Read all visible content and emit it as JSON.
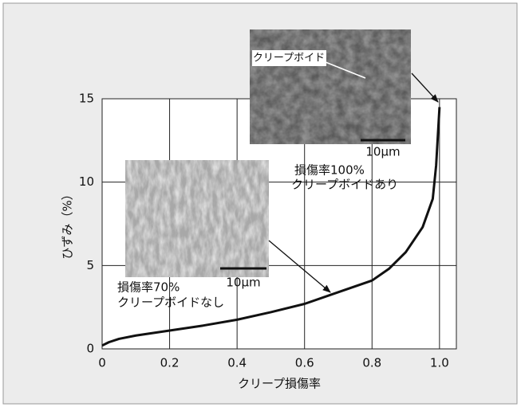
{
  "chart_data": {
    "type": "line",
    "x_label": "クリープ損傷率",
    "y_label": "ひずみ（%）",
    "x": [
      0,
      0.02,
      0.05,
      0.1,
      0.2,
      0.3,
      0.4,
      0.5,
      0.6,
      0.7,
      0.8,
      0.85,
      0.9,
      0.95,
      0.98,
      0.99,
      1.0
    ],
    "series": [
      {
        "color": "#111111",
        "values": [
          0.2,
          0.4,
          0.6,
          0.8,
          1.1,
          1.4,
          1.75,
          2.2,
          2.7,
          3.4,
          4.1,
          4.8,
          5.8,
          7.3,
          9,
          11,
          14.5
        ]
      }
    ],
    "xlim": [
      0,
      1.05
    ],
    "ylim": [
      0,
      15
    ],
    "xticks": [
      0,
      0.2,
      0.4,
      0.6,
      0.8,
      {
        "value": 1,
        "label": "1.0"
      }
    ],
    "yticks": [
      0,
      5,
      10,
      15
    ],
    "grid": true,
    "annotations": [
      "クリープボイド",
      "10μm",
      "損傷率100%",
      "クリープボイドあり",
      "10μm",
      "損傷率70%",
      "クリープボイドなし"
    ]
  }
}
